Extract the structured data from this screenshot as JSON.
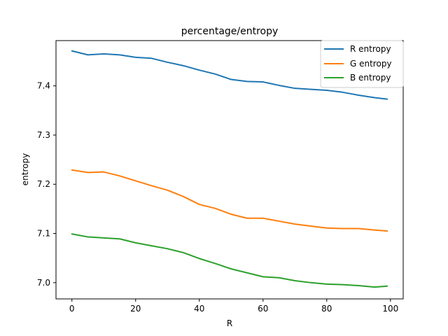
{
  "chart_data": {
    "type": "line",
    "title": "percentage/entropy",
    "xlabel": "R",
    "ylabel": "entropy",
    "xlim": [
      -5,
      104
    ],
    "ylim": [
      6.967,
      7.492
    ],
    "x_ticks": [
      0,
      20,
      40,
      60,
      80,
      100
    ],
    "x_tick_labels": [
      "0",
      "20",
      "40",
      "60",
      "80",
      "100"
    ],
    "y_ticks": [
      7.0,
      7.1,
      7.2,
      7.3,
      7.4
    ],
    "y_tick_labels": [
      "7.0",
      "7.1",
      "7.2",
      "7.3",
      "7.4"
    ],
    "grid": false,
    "legend": "top-right",
    "x": [
      0,
      5,
      10,
      15,
      20,
      25,
      30,
      35,
      40,
      45,
      50,
      55,
      60,
      65,
      70,
      75,
      80,
      85,
      90,
      95,
      99
    ],
    "series": [
      {
        "name": "R entropy",
        "color": "#1f77b4",
        "values": [
          7.471,
          7.463,
          7.465,
          7.463,
          7.458,
          7.456,
          7.448,
          7.441,
          7.432,
          7.424,
          7.413,
          7.409,
          7.408,
          7.401,
          7.395,
          7.393,
          7.391,
          7.387,
          7.381,
          7.376,
          7.373
        ]
      },
      {
        "name": "G entropy",
        "color": "#ff7f0e",
        "values": [
          7.229,
          7.224,
          7.225,
          7.217,
          7.207,
          7.197,
          7.188,
          7.175,
          7.159,
          7.151,
          7.139,
          7.131,
          7.131,
          7.125,
          7.119,
          7.115,
          7.111,
          7.11,
          7.11,
          7.107,
          7.105
        ]
      },
      {
        "name": "B entropy",
        "color": "#2ca02c",
        "values": [
          7.099,
          7.093,
          7.091,
          7.089,
          7.081,
          7.075,
          7.069,
          7.061,
          7.049,
          7.039,
          7.028,
          7.02,
          7.012,
          7.01,
          7.004,
          7.0,
          6.997,
          6.996,
          6.994,
          6.991,
          6.993
        ]
      }
    ]
  }
}
